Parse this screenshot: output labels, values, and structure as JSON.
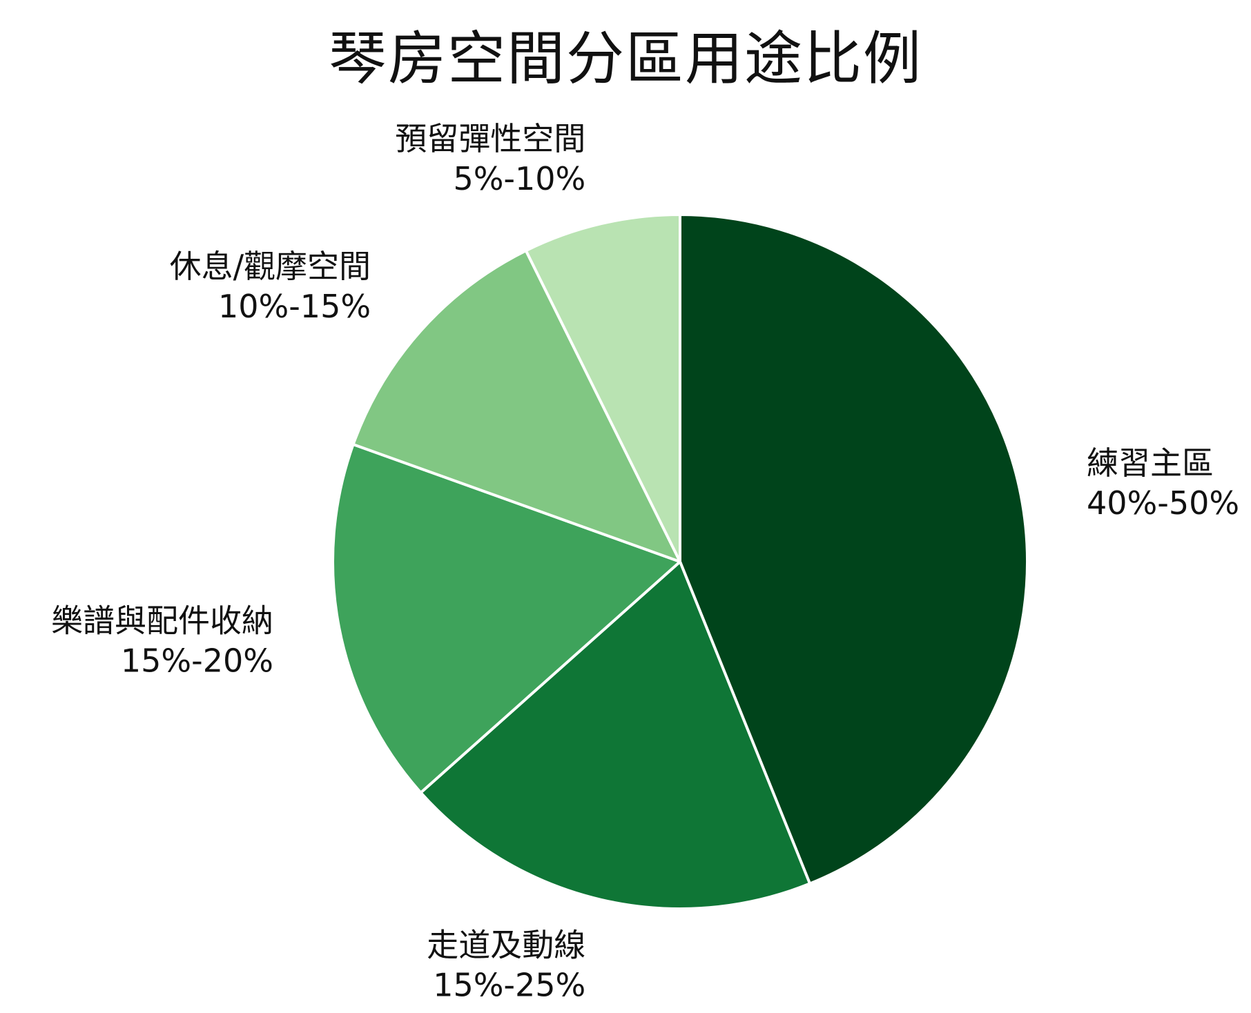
{
  "chart_data": {
    "type": "pie",
    "title": "琴房空間分區用途比例",
    "start_angle_deg": 0,
    "direction": "clockwise",
    "slices": [
      {
        "label": "練習主區",
        "range_label": "40%-50%",
        "value": 45,
        "color": "#00441b"
      },
      {
        "label": "走道及動線",
        "range_label": "15%-25%",
        "value": 20,
        "color": "#0f7636"
      },
      {
        "label": "樂譜與配件收納",
        "range_label": "15%-20%",
        "value": 17.5,
        "color": "#3ea35b"
      },
      {
        "label": "休息/觀摩空間",
        "range_label": "10%-15%",
        "value": 12.5,
        "color": "#81c783"
      },
      {
        "label": "預留彈性空間",
        "range_label": "5%-10%",
        "value": 7.5,
        "color": "#b9e3b2"
      }
    ],
    "legend": "none"
  }
}
